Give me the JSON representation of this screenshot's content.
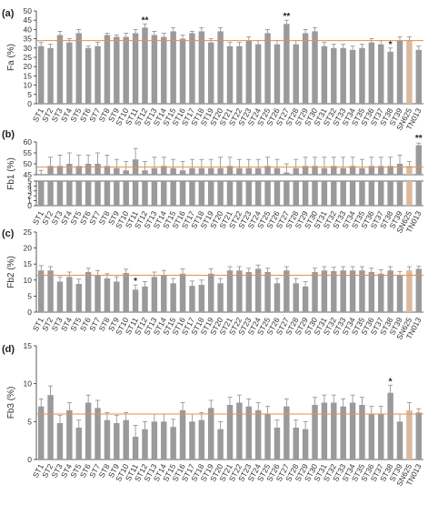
{
  "chart_data": [
    {
      "panel_label": "(a)",
      "type": "bar",
      "ylabel": "Fa (%)",
      "yticks": [
        "0",
        "5",
        "10",
        "15",
        "20",
        "25",
        "30",
        "35",
        "40",
        "45",
        "50"
      ],
      "ylim": [
        0,
        50
      ],
      "reference_line": 34,
      "categories": [
        "ST1",
        "ST2",
        "ST3",
        "ST4",
        "ST5",
        "ST6",
        "ST7",
        "ST8",
        "ST9",
        "ST10",
        "ST11",
        "ST12",
        "ST13",
        "ST14",
        "ST15",
        "ST16",
        "ST17",
        "ST18",
        "ST19",
        "ST20",
        "ST21",
        "ST22",
        "ST23",
        "ST24",
        "ST25",
        "ST26",
        "ST27",
        "ST28",
        "ST29",
        "ST30",
        "ST31",
        "ST32",
        "ST33",
        "ST34",
        "ST35",
        "ST36",
        "ST37",
        "ST38",
        "ST39",
        "SN625",
        "TN013"
      ],
      "values": [
        31,
        30,
        37,
        33,
        38,
        30,
        31,
        37,
        36,
        36,
        38,
        41,
        37,
        36,
        39,
        35,
        38,
        39,
        33,
        39,
        31,
        31,
        34,
        32,
        38,
        32,
        43,
        32,
        38,
        39,
        31,
        30,
        30,
        29,
        30,
        33,
        32,
        28,
        34,
        34,
        29
      ],
      "errors": [
        2,
        2,
        2,
        2,
        2,
        1,
        2,
        1,
        1,
        2,
        2,
        2,
        2,
        2,
        2,
        2,
        1,
        2,
        2,
        2,
        2,
        2,
        2,
        2,
        2,
        2,
        2,
        2,
        2,
        2,
        2,
        2,
        2,
        2,
        2,
        2,
        2,
        2,
        2,
        2,
        2
      ],
      "annotations": [
        "",
        "",
        "",
        "",
        "",
        "",
        "",
        "",
        "",
        "",
        "",
        "**",
        "",
        "",
        "",
        "",
        "",
        "",
        "",
        "",
        "",
        "",
        "",
        "",
        "",
        "",
        "**",
        "",
        "",
        "",
        "",
        "",
        "",
        "",
        "",
        "",
        "",
        "*",
        "",
        "",
        ""
      ]
    },
    {
      "panel_label": "(b)",
      "type": "bar",
      "ylabel": "Fb1 (%)",
      "yticks_upper": [
        "45",
        "50",
        "55",
        "60"
      ],
      "yticks_lower": [
        "0",
        "1",
        "2",
        "3",
        "4",
        "5"
      ],
      "ylim_upper": [
        45,
        60
      ],
      "ylim_lower": [
        0,
        5
      ],
      "reference_line": 48.5,
      "categories": [
        "ST1",
        "ST2",
        "ST3",
        "ST4",
        "ST5",
        "ST6",
        "ST7",
        "ST8",
        "ST9",
        "ST10",
        "ST11",
        "ST12",
        "ST13",
        "ST14",
        "ST15",
        "ST16",
        "ST17",
        "ST18",
        "ST19",
        "ST20",
        "ST21",
        "ST22",
        "ST23",
        "ST24",
        "ST25",
        "ST26",
        "ST27",
        "ST28",
        "ST29",
        "ST30",
        "ST31",
        "ST32",
        "ST33",
        "ST34",
        "ST35",
        "ST36",
        "ST37",
        "ST38",
        "ST39",
        "SN625",
        "TN013"
      ],
      "values": [
        45,
        49,
        49,
        50,
        49,
        50,
        50,
        49,
        48,
        47,
        52,
        47,
        48,
        49,
        48,
        47,
        48,
        48,
        48,
        48,
        49,
        48,
        48,
        48,
        49,
        48,
        46,
        48,
        49,
        49,
        48,
        49,
        48,
        49,
        48,
        49,
        49,
        49,
        50,
        49,
        58.5
      ],
      "errors": [
        2,
        4,
        5,
        5,
        5,
        4,
        5,
        5,
        4,
        4,
        5,
        4,
        5,
        4,
        4,
        4,
        4,
        4,
        4,
        5,
        4,
        4,
        4,
        4,
        4,
        4,
        4,
        4,
        4,
        4,
        5,
        4,
        5,
        4,
        4,
        4,
        4,
        4,
        4,
        2,
        1
      ],
      "annotations": [
        "",
        "",
        "",
        "",
        "",
        "",
        "",
        "",
        "",
        "",
        "",
        "",
        "",
        "",
        "",
        "",
        "",
        "",
        "",
        "",
        "",
        "",
        "",
        "",
        "",
        "",
        "",
        "",
        "",
        "",
        "",
        "",
        "",
        "",
        "",
        "",
        "",
        "",
        "",
        "",
        "**"
      ]
    },
    {
      "panel_label": "(c)",
      "type": "bar",
      "ylabel": "Fb2 (%)",
      "yticks": [
        "0",
        "5",
        "10",
        "15",
        "20",
        "25"
      ],
      "ylim": [
        0,
        25
      ],
      "reference_line": 11.5,
      "categories": [
        "ST1",
        "ST2",
        "ST3",
        "ST4",
        "ST5",
        "ST6",
        "ST7",
        "ST8",
        "ST9",
        "ST10",
        "ST11",
        "ST12",
        "ST13",
        "ST14",
        "ST15",
        "ST16",
        "ST17",
        "ST18",
        "ST19",
        "ST20",
        "ST21",
        "ST22",
        "ST23",
        "ST24",
        "ST25",
        "ST26",
        "ST27",
        "ST28",
        "ST29",
        "ST30",
        "ST31",
        "ST32",
        "ST33",
        "ST34",
        "ST35",
        "ST36",
        "ST37",
        "ST38",
        "ST39",
        "SN625",
        "TN013"
      ],
      "values": [
        13,
        13,
        9.5,
        11,
        8.8,
        12.5,
        11.5,
        10.5,
        9.5,
        12.2,
        7,
        8,
        11,
        11.5,
        9,
        12,
        8.2,
        8.5,
        12,
        9,
        13,
        13,
        12.5,
        13.5,
        12.5,
        9,
        13,
        9,
        8,
        12.5,
        13,
        12.8,
        13,
        13,
        13,
        12.5,
        12,
        13,
        11.5,
        13,
        13.5
      ],
      "errors": [
        1.5,
        1.2,
        1.5,
        1.5,
        1.5,
        1.2,
        1.5,
        1.5,
        1.5,
        1.2,
        1.5,
        1.5,
        1.5,
        1.5,
        1.5,
        1.5,
        1.5,
        1.5,
        1.5,
        1.5,
        1.2,
        1.2,
        1.2,
        1.2,
        1.2,
        1.5,
        1.2,
        1.5,
        1.5,
        1.2,
        1.2,
        1.2,
        1.2,
        1.2,
        1.2,
        1.2,
        1.2,
        1.2,
        1.2,
        1.2,
        0.8
      ],
      "annotations": [
        "",
        "",
        "",
        "",
        "",
        "",
        "",
        "",
        "",
        "",
        "*",
        "",
        "",
        "",
        "",
        "",
        "",
        "",
        "",
        "",
        "",
        "",
        "",
        "",
        "",
        "",
        "",
        "",
        "",
        "",
        "",
        "",
        "",
        "",
        "",
        "",
        "",
        "",
        "",
        "",
        ""
      ]
    },
    {
      "panel_label": "(d)",
      "type": "bar",
      "ylabel": "Fb3 (%)",
      "yticks": [
        "0",
        "5",
        "10",
        "15"
      ],
      "ylim": [
        0,
        15
      ],
      "reference_line": 6,
      "categories": [
        "ST1",
        "ST2",
        "ST3",
        "ST4",
        "ST5",
        "ST6",
        "ST7",
        "ST8",
        "ST9",
        "ST10",
        "ST11",
        "ST12",
        "ST13",
        "ST14",
        "ST15",
        "ST16",
        "ST17",
        "ST18",
        "ST19",
        "ST20",
        "ST21",
        "ST22",
        "ST23",
        "ST24",
        "ST25",
        "ST26",
        "ST27",
        "ST28",
        "ST29",
        "ST30",
        "ST31",
        "ST32",
        "ST33",
        "ST34",
        "ST35",
        "ST36",
        "ST37",
        "ST38",
        "ST39",
        "SN625",
        "TN013"
      ],
      "values": [
        7,
        8.5,
        4.8,
        6.5,
        4.2,
        7.5,
        6.8,
        5.2,
        4.8,
        5.2,
        3,
        4,
        5,
        5,
        4.3,
        6.5,
        5,
        5.2,
        6.8,
        4,
        7.2,
        7.5,
        7,
        6.5,
        6,
        4.2,
        7,
        4.2,
        4,
        7.2,
        7.5,
        7.5,
        7,
        7.5,
        7.2,
        6,
        6,
        8.8,
        5,
        6.5,
        6.2
      ],
      "errors": [
        1,
        1.2,
        1,
        1,
        1,
        1,
        1,
        1,
        1,
        1,
        1.5,
        1,
        1,
        1,
        1,
        1,
        1,
        1,
        1,
        1,
        1,
        1,
        1,
        1,
        1,
        1,
        1,
        1,
        1,
        1,
        1,
        1,
        1,
        1,
        1,
        1,
        1,
        1,
        1,
        1,
        0.5
      ],
      "annotations": [
        "",
        "",
        "",
        "",
        "",
        "",
        "",
        "",
        "",
        "",
        "",
        "",
        "",
        "",
        "",
        "",
        "",
        "",
        "",
        "",
        "",
        "",
        "",
        "",
        "",
        "",
        "",
        "",
        "",
        "",
        "",
        "",
        "",
        "",
        "",
        "",
        "",
        "*",
        "",
        "",
        ""
      ]
    }
  ],
  "colors": {
    "bar": "#9a9a9c",
    "bar_highlight": "#dbb99d",
    "reference_line": "#e2914f",
    "axis": "#333333",
    "error_bar": "#8c8c8c"
  },
  "highlight_category": "SN625"
}
